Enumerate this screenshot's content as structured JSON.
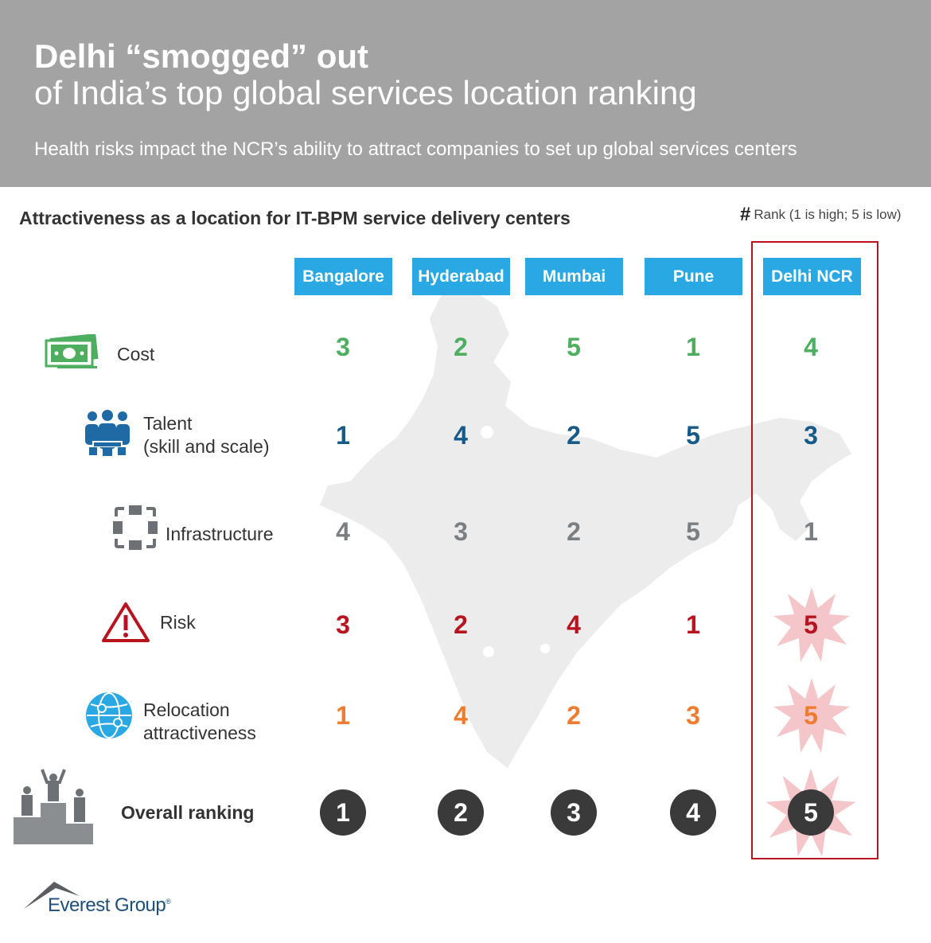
{
  "header": {
    "title_bold": "Delhi “smogged” out",
    "title_regular": "of India’s top global services location ranking",
    "subtitle": "Health risks impact the NCR’s ability to attract companies to set up global services centers",
    "background_color": "#a3a3a3"
  },
  "section_title": "Attractiveness as a location for IT-BPM  service delivery centers",
  "legend": {
    "symbol": "#",
    "text": "Rank (1 is high; 5 is low)"
  },
  "columns": [
    "Bangalore",
    "Hyderabad",
    "Mumbai",
    "Pune",
    "Delhi NCR"
  ],
  "highlighted_column": "Delhi NCR",
  "rows": [
    {
      "label": "Cost",
      "icon": "money-icon",
      "color": "#4cae5e",
      "ranks": [
        "3",
        "2",
        "5",
        "1",
        "4"
      ]
    },
    {
      "label": "Talent",
      "label2": "(skill and scale)",
      "icon": "people-icon",
      "color": "#165a8a",
      "ranks": [
        "1",
        "4",
        "2",
        "5",
        "3"
      ]
    },
    {
      "label": "Infrastructure",
      "icon": "infrastructure-icon",
      "color": "#7b7f82",
      "ranks": [
        "4",
        "3",
        "2",
        "5",
        "1"
      ]
    },
    {
      "label": "Risk",
      "icon": "warning-icon",
      "color": "#b8141f",
      "ranks": [
        "3",
        "2",
        "4",
        "1",
        "5"
      ]
    },
    {
      "label": "Relocation",
      "label2": "attractiveness",
      "icon": "globe-icon",
      "color": "#ef7b2e",
      "ranks": [
        "1",
        "4",
        "2",
        "3",
        "5"
      ]
    }
  ],
  "overall": {
    "label": "Overall ranking",
    "icon": "podium-icon",
    "ranks": [
      "1",
      "2",
      "3",
      "4",
      "5"
    ]
  },
  "logo": {
    "text": "Everest Group",
    "mark": "®"
  },
  "colors": {
    "header_blue": "#2aa8e3",
    "highlight_red": "#b8141f",
    "burst_pink": "#f4c6c9",
    "circle_dark": "#3a3a3a"
  }
}
